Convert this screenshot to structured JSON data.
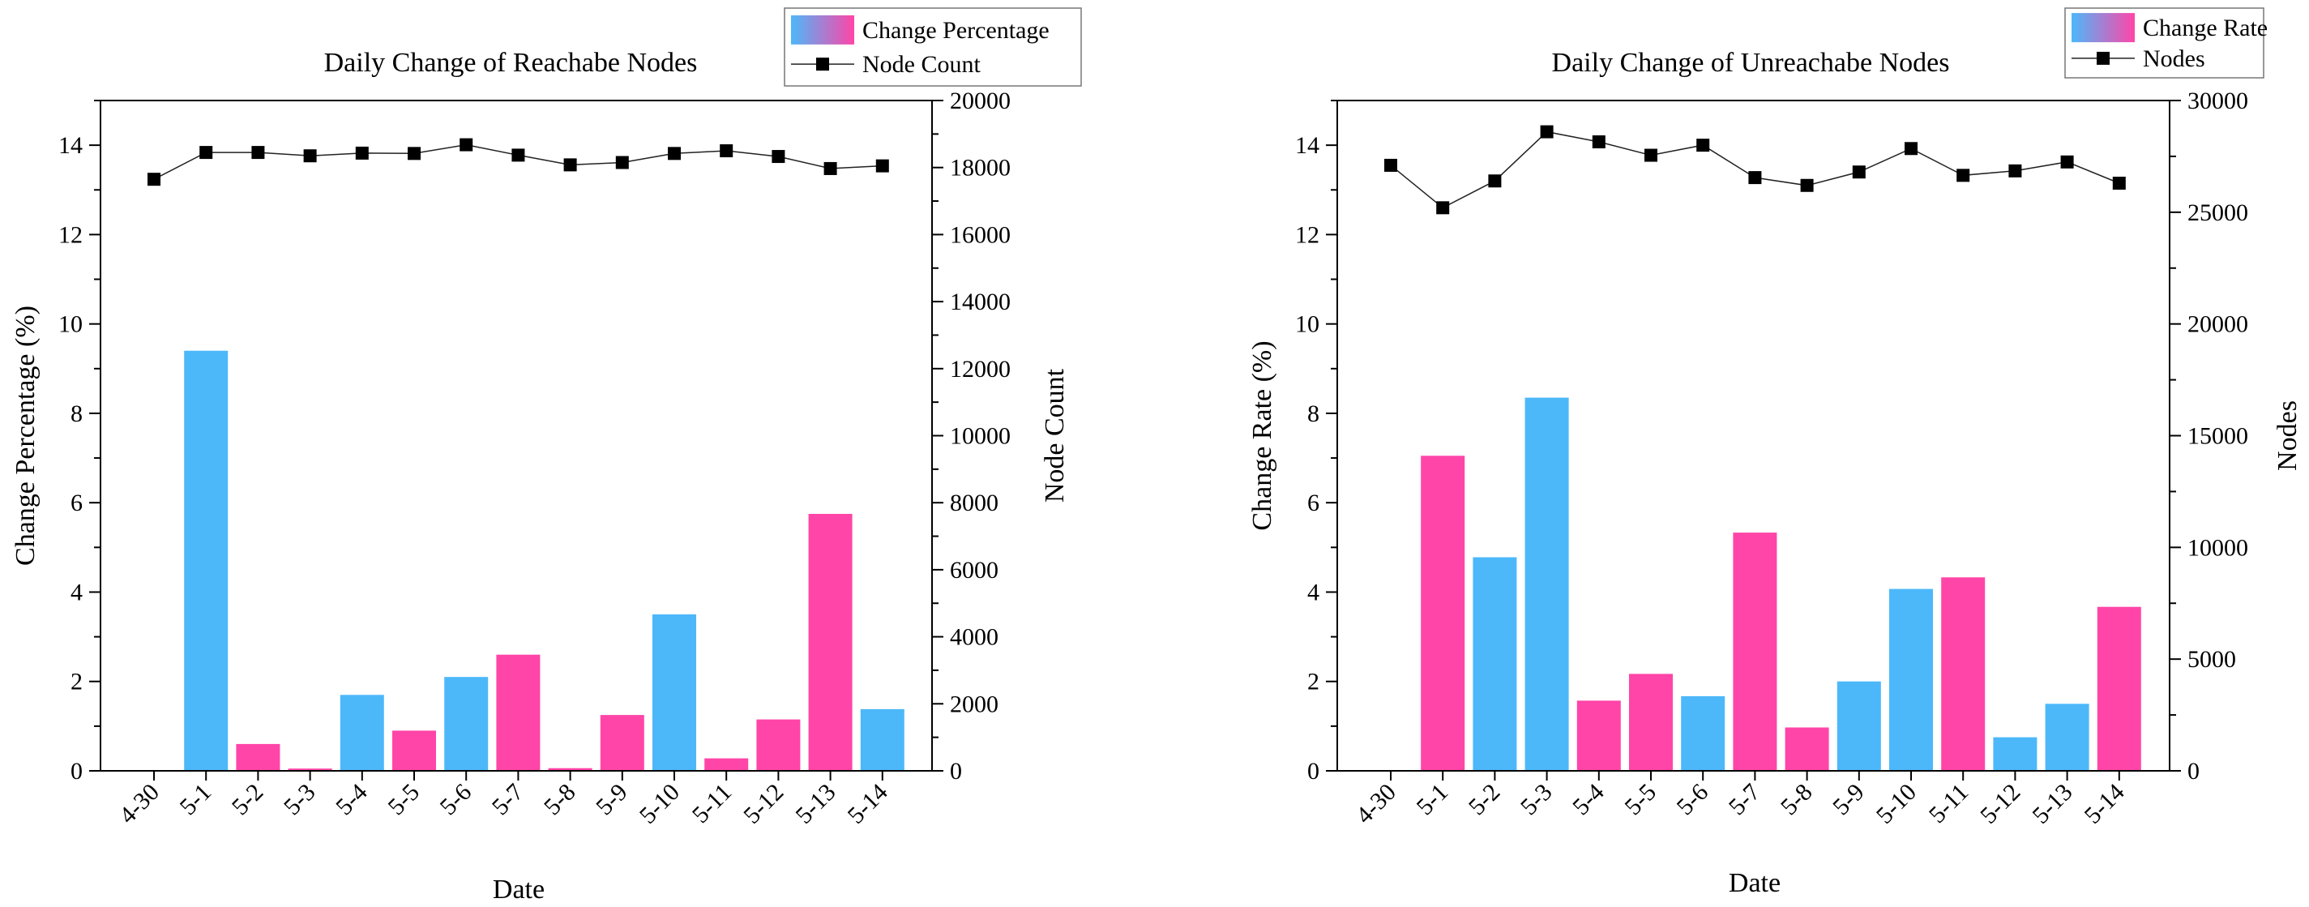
{
  "colors": {
    "increase": "#ff45a8",
    "decrease": "#4cb8fa",
    "line": "#222222",
    "marker": "#000000"
  },
  "chart_data": [
    {
      "type": "bar",
      "title": "Daily Change of Reachabe Nodes",
      "xlabel": "Date",
      "ylabel": "Change Percentage (%)",
      "ylabel_right": "Node Count",
      "categories": [
        "4-30",
        "5-1",
        "5-2",
        "5-3",
        "5-4",
        "5-5",
        "5-6",
        "5-7",
        "5-8",
        "5-9",
        "5-10",
        "5-11",
        "5-12",
        "5-13",
        "5-14"
      ],
      "ylim": [
        0,
        15
      ],
      "yticks": [
        "0",
        "2",
        "4",
        "6",
        "8",
        "10",
        "12",
        "14"
      ],
      "ylim_right": [
        0,
        20000
      ],
      "yticks_right": [
        "0",
        "2000",
        "4000",
        "6000",
        "8000",
        "10000",
        "12000",
        "14000",
        "16000",
        "18000",
        "20000"
      ],
      "legend": [
        "Change Percentage",
        "Node Count"
      ],
      "series": [
        {
          "name": "Change Percentage",
          "type": "bar",
          "axis": "left",
          "values": [
            0,
            9.4,
            0.6,
            0.05,
            1.7,
            0.9,
            2.1,
            2.6,
            0.06,
            1.25,
            3.5,
            0.28,
            1.15,
            5.75,
            1.38
          ],
          "direction": [
            "increase",
            "decrease",
            "increase",
            "increase",
            "decrease",
            "increase",
            "decrease",
            "increase",
            "increase",
            "increase",
            "decrease",
            "increase",
            "increase",
            "increase",
            "decrease"
          ]
        },
        {
          "name": "Node Count",
          "type": "line",
          "axis": "right",
          "values": [
            17650,
            18450,
            18450,
            18350,
            18430,
            18420,
            18680,
            18370,
            18080,
            18150,
            18420,
            18500,
            18330,
            17970,
            18050
          ]
        }
      ]
    },
    {
      "type": "bar",
      "title": "Daily Change of Unreachabe Nodes",
      "xlabel": "Date",
      "ylabel": "Change Rate (%)",
      "ylabel_right": "Nodes",
      "categories": [
        "4-30",
        "5-1",
        "5-2",
        "5-3",
        "5-4",
        "5-5",
        "5-6",
        "5-7",
        "5-8",
        "5-9",
        "5-10",
        "5-11",
        "5-12",
        "5-13",
        "5-14"
      ],
      "ylim": [
        0,
        15
      ],
      "yticks": [
        "0",
        "2",
        "4",
        "6",
        "8",
        "10",
        "12",
        "14"
      ],
      "ylim_right": [
        0,
        30000
      ],
      "yticks_right": [
        "0",
        "5000",
        "10000",
        "15000",
        "20000",
        "25000",
        "30000"
      ],
      "legend": [
        "Change Rate",
        "Nodes"
      ],
      "series": [
        {
          "name": "Change Rate",
          "type": "bar",
          "axis": "left",
          "values": [
            0,
            7.05,
            4.78,
            8.35,
            1.57,
            2.17,
            1.67,
            5.33,
            0.97,
            2.0,
            4.07,
            4.33,
            0.75,
            1.5,
            3.67
          ],
          "direction": [
            "increase",
            "increase",
            "decrease",
            "decrease",
            "increase",
            "increase",
            "decrease",
            "increase",
            "increase",
            "decrease",
            "decrease",
            "increase",
            "decrease",
            "decrease",
            "increase"
          ]
        },
        {
          "name": "Nodes",
          "type": "line",
          "axis": "right",
          "values": [
            27100,
            25200,
            26400,
            28600,
            28150,
            27550,
            28000,
            26550,
            26200,
            26800,
            27850,
            26650,
            26850,
            27250,
            26300
          ]
        }
      ]
    }
  ]
}
